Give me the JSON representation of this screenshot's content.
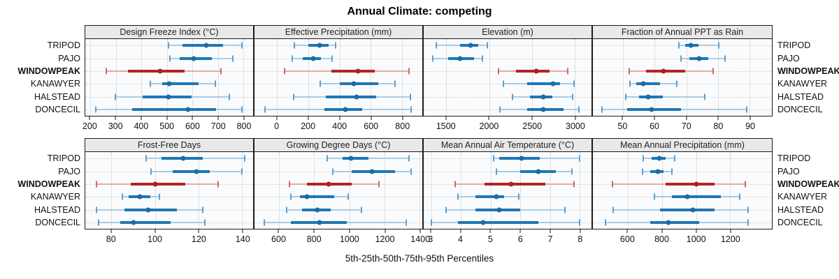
{
  "title": "Annual Climate: competing",
  "caption": "5th-25th-50th-75th-95th Percentiles",
  "highlighted_site": "WINDOWPEAK",
  "colors": {
    "blue_main": "#1f77b4",
    "blue_dot": "#1a6ca8",
    "blue_light": "#a9cce6",
    "blue_cap": "#5c9fd1",
    "red_main": "#b22526",
    "red_dot": "#ab1f26",
    "red_light": "#e3aaa5",
    "red_cap": "#cd6a63",
    "header_bg": "#e9e9e9",
    "panel_bg": "#fafbfc",
    "grid": "#c4c4c4",
    "grid2": "#cfcfcf",
    "border": "#1a1a1a"
  },
  "chart_data": {
    "type": "dotplot-percentiles",
    "percentile_labels": [
      "5th",
      "25th",
      "50th",
      "75th",
      "95th"
    ],
    "rows": [
      "TRIPOD",
      "PAJO",
      "WINDOWPEAK",
      "KANAWYER",
      "HALSTEAD",
      "DONCECIL"
    ],
    "layout": {
      "panels_per_row": 4,
      "grid": "dotted",
      "row_labels": "left-and-right"
    },
    "panels": [
      {
        "label": "Design Freeze Index (°C)",
        "axis": {
          "min": 180,
          "max": 838,
          "ticks": [
            200,
            300,
            400,
            500,
            600,
            700,
            800
          ]
        },
        "values": [
          [
            505,
            560,
            655,
            720,
            795
          ],
          [
            513,
            549,
            604,
            675,
            758
          ],
          [
            263,
            346,
            472,
            569,
            711
          ],
          [
            436,
            481,
            510,
            625,
            691
          ],
          [
            299,
            404,
            505,
            598,
            744
          ],
          [
            222,
            364,
            582,
            693,
            795
          ]
        ]
      },
      {
        "label": "Effective Precipitation (mm)",
        "axis": {
          "min": -145,
          "max": 930,
          "ticks": [
            0,
            200,
            400,
            600,
            800
          ]
        },
        "values": [
          [
            110,
            200,
            270,
            330,
            376
          ],
          [
            95,
            166,
            230,
            280,
            351
          ],
          [
            47,
            348,
            519,
            625,
            844
          ],
          [
            277,
            403,
            492,
            647,
            754
          ],
          [
            107,
            314,
            511,
            633,
            855
          ],
          [
            -79,
            302,
            436,
            544,
            859
          ]
        ]
      },
      {
        "label": "Elevation (m)",
        "axis": {
          "min": 1235,
          "max": 3195,
          "ticks": [
            1500,
            2000,
            2500,
            3000
          ]
        },
        "values": [
          [
            1384,
            1662,
            1784,
            1870,
            1978
          ],
          [
            1338,
            1522,
            1662,
            1819,
            1924
          ],
          [
            2108,
            2311,
            2546,
            2703,
            2919
          ],
          [
            2162,
            2446,
            2743,
            2824,
            2992
          ],
          [
            2270,
            2473,
            2630,
            2735,
            2973
          ],
          [
            2122,
            2446,
            2630,
            2865,
            3046
          ]
        ]
      },
      {
        "label": "Fraction of Annual PPT as Rain",
        "axis": {
          "min": 40.5,
          "max": 97,
          "ticks": [
            50,
            60,
            70,
            80,
            90
          ]
        },
        "values": [
          [
            67.7,
            69.6,
            71.5,
            73.8,
            80.2
          ],
          [
            68.3,
            71.0,
            74.1,
            76.9,
            82.3
          ],
          [
            52.0,
            57.2,
            62.8,
            69.6,
            78.5
          ],
          [
            52.2,
            54.1,
            56.4,
            61.8,
            67.0
          ],
          [
            50.8,
            55.0,
            57.9,
            62.6,
            75.9
          ],
          [
            43.3,
            51.3,
            59.1,
            68.3,
            89.1
          ]
        ]
      },
      {
        "label": "Frost-Free Days",
        "axis": {
          "min": 68,
          "max": 145,
          "ticks": [
            80,
            100,
            120,
            140
          ]
        },
        "values": [
          [
            96,
            103,
            113,
            122,
            141
          ],
          [
            98,
            108,
            119,
            125,
            140
          ],
          [
            73,
            89,
            100,
            114,
            129
          ],
          [
            85,
            88,
            93,
            98,
            102
          ],
          [
            73,
            86,
            97,
            110,
            122
          ],
          [
            74,
            84,
            90,
            107,
            123
          ]
        ]
      },
      {
        "label": "Growing Degree Days (°C)",
        "axis": {
          "min": 460,
          "max": 1415,
          "ticks": [
            600,
            800,
            1000,
            1200,
            1400
          ]
        },
        "values": [
          [
            875,
            960,
            1010,
            1110,
            1340
          ],
          [
            905,
            1015,
            1130,
            1260,
            1350
          ],
          [
            660,
            757,
            880,
            1015,
            1170
          ],
          [
            665,
            718,
            760,
            915,
            995
          ],
          [
            645,
            730,
            820,
            895,
            1070
          ],
          [
            515,
            666,
            830,
            987,
            1325
          ]
        ]
      },
      {
        "label": "Mean Annual Air Temperature (°C)",
        "axis": {
          "min": 2.75,
          "max": 8.4,
          "ticks": [
            3,
            4,
            5,
            6,
            7,
            8
          ]
        },
        "values": [
          [
            5.1,
            5.3,
            6.05,
            6.65,
            8.0
          ],
          [
            5.2,
            6.0,
            6.6,
            7.2,
            7.75
          ],
          [
            3.8,
            4.8,
            5.7,
            6.85,
            7.8
          ],
          [
            3.9,
            4.5,
            5.2,
            5.45,
            5.95
          ],
          [
            3.5,
            4.5,
            5.3,
            6.0,
            7.5
          ],
          [
            3.0,
            3.9,
            4.75,
            6.6,
            8.0
          ]
        ]
      },
      {
        "label": "Mean Annual Precipitation (mm)",
        "axis": {
          "min": 395,
          "max": 1445,
          "ticks": [
            600,
            800,
            1000,
            1200
          ]
        },
        "values": [
          [
            690,
            740,
            785,
            823,
            875
          ],
          [
            685,
            732,
            775,
            810,
            858
          ],
          [
            508,
            820,
            1000,
            1110,
            1290
          ],
          [
            755,
            860,
            950,
            1145,
            1255
          ],
          [
            515,
            790,
            980,
            1110,
            1305
          ],
          [
            470,
            732,
            840,
            1020,
            1305
          ]
        ]
      }
    ]
  }
}
